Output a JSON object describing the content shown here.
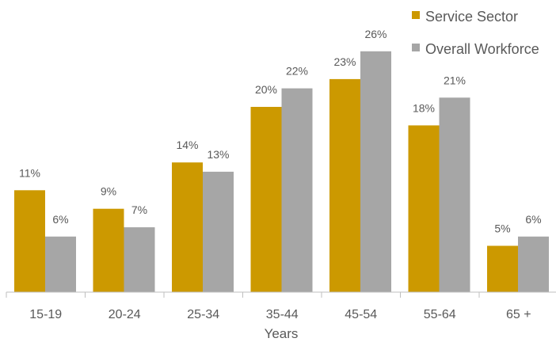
{
  "chart_data": {
    "type": "bar",
    "categories": [
      "15-19",
      "20-24",
      "25-34",
      "35-44",
      "45-54",
      "55-64",
      "65 +"
    ],
    "series": [
      {
        "name": "Service Sector",
        "values": [
          11,
          9,
          14,
          20,
          23,
          18,
          5
        ],
        "labels": [
          "11%",
          "9%",
          "14%",
          "20%",
          "23%",
          "18%",
          "5%"
        ],
        "color": "#CC9900"
      },
      {
        "name": "Overall Workforce",
        "values": [
          6,
          7,
          13,
          22,
          26,
          21,
          6
        ],
        "labels": [
          "6%",
          "7%",
          "13%",
          "22%",
          "26%",
          "21%",
          "6%"
        ],
        "color": "#A6A6A6"
      }
    ],
    "title": "",
    "xlabel": "Years",
    "ylabel": "",
    "ylim": [
      0,
      30
    ],
    "grid": false,
    "legend": "top-right"
  }
}
